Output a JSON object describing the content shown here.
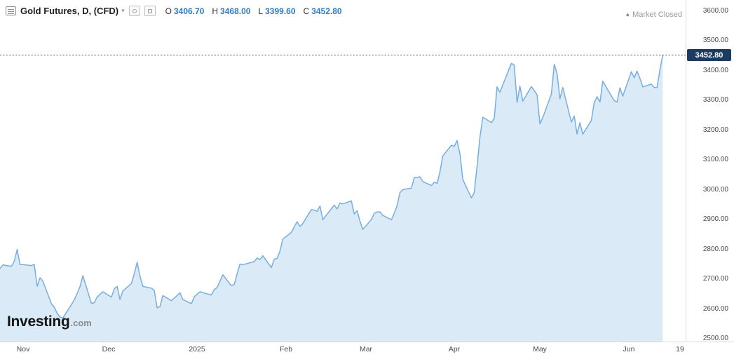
{
  "header": {
    "title": "Gold Futures, D, (CFD)",
    "caret": "▾",
    "ohlc": [
      {
        "label": "O",
        "value": "3406.70"
      },
      {
        "label": "H",
        "value": "3468.00"
      },
      {
        "label": "L",
        "value": "3399.60"
      },
      {
        "label": "C",
        "value": "3452.80"
      }
    ],
    "market_status": {
      "dot": "●",
      "label": "Market Closed"
    }
  },
  "logo": {
    "brand": "Investing",
    "suffix": ".com"
  },
  "colors": {
    "area_fill": "#daeaf7",
    "line": "#78aede",
    "ohlc_value": "#2f7dc3",
    "price_tag_bg": "#1d3a5f",
    "price_tag_text": "#ffffff",
    "axis_text": "#4a4a4a",
    "dotted_line": "#555555"
  },
  "chart_data": {
    "type": "area",
    "title": "Gold Futures, D, (CFD)",
    "xlabel": "",
    "ylabel": "",
    "x_range": [
      "2024-10-24",
      "2025-06-21"
    ],
    "ylim": [
      2500,
      3600
    ],
    "y_ticks": [
      3600,
      3500,
      3400,
      3300,
      3200,
      3100,
      3000,
      2900,
      2800,
      2700,
      2600,
      2500
    ],
    "x_ticks": [
      {
        "label": "Nov",
        "date": "2024-11-01"
      },
      {
        "label": "Dec",
        "date": "2024-12-01"
      },
      {
        "label": "2025",
        "date": "2025-01-01"
      },
      {
        "label": "Feb",
        "date": "2025-02-01"
      },
      {
        "label": "Mar",
        "date": "2025-03-01"
      },
      {
        "label": "Apr",
        "date": "2025-04-01"
      },
      {
        "label": "May",
        "date": "2025-05-01"
      },
      {
        "label": "Jun",
        "date": "2025-06-01"
      },
      {
        "label": "19",
        "date": "2025-06-19"
      }
    ],
    "last_price": 3452.8,
    "last_price_label": "3452.80",
    "series": [
      {
        "name": "Gold Futures Close",
        "points": [
          [
            "2024-10-24",
            2736
          ],
          [
            "2024-10-25",
            2748
          ],
          [
            "2024-10-28",
            2743
          ],
          [
            "2024-10-29",
            2761
          ],
          [
            "2024-10-30",
            2800
          ],
          [
            "2024-10-31",
            2749
          ],
          [
            "2024-11-01",
            2749
          ],
          [
            "2024-11-04",
            2746
          ],
          [
            "2024-11-05",
            2750
          ],
          [
            "2024-11-06",
            2676
          ],
          [
            "2024-11-07",
            2705
          ],
          [
            "2024-11-08",
            2694
          ],
          [
            "2024-11-11",
            2618
          ],
          [
            "2024-11-12",
            2606
          ],
          [
            "2024-11-13",
            2586
          ],
          [
            "2024-11-14",
            2573
          ],
          [
            "2024-11-15",
            2570
          ],
          [
            "2024-11-18",
            2615
          ],
          [
            "2024-11-19",
            2631
          ],
          [
            "2024-11-20",
            2652
          ],
          [
            "2024-11-21",
            2675
          ],
          [
            "2024-11-22",
            2712
          ],
          [
            "2024-11-25",
            2619
          ],
          [
            "2024-11-26",
            2621
          ],
          [
            "2024-11-27",
            2640
          ],
          [
            "2024-11-29",
            2658
          ],
          [
            "2024-12-02",
            2640
          ],
          [
            "2024-12-03",
            2668
          ],
          [
            "2024-12-04",
            2676
          ],
          [
            "2024-12-05",
            2632
          ],
          [
            "2024-12-06",
            2660
          ],
          [
            "2024-12-09",
            2686
          ],
          [
            "2024-12-10",
            2718
          ],
          [
            "2024-12-11",
            2757
          ],
          [
            "2024-12-12",
            2710
          ],
          [
            "2024-12-13",
            2676
          ],
          [
            "2024-12-16",
            2670
          ],
          [
            "2024-12-17",
            2662
          ],
          [
            "2024-12-18",
            2604
          ],
          [
            "2024-12-19",
            2608
          ],
          [
            "2024-12-20",
            2645
          ],
          [
            "2024-12-23",
            2628
          ],
          [
            "2024-12-26",
            2654
          ],
          [
            "2024-12-27",
            2632
          ],
          [
            "2024-12-30",
            2618
          ],
          [
            "2024-12-31",
            2641
          ],
          [
            "2025-01-02",
            2658
          ],
          [
            "2025-01-03",
            2655
          ],
          [
            "2025-01-06",
            2647
          ],
          [
            "2025-01-07",
            2665
          ],
          [
            "2025-01-08",
            2672
          ],
          [
            "2025-01-10",
            2715
          ],
          [
            "2025-01-13",
            2678
          ],
          [
            "2025-01-14",
            2683
          ],
          [
            "2025-01-15",
            2718
          ],
          [
            "2025-01-16",
            2751
          ],
          [
            "2025-01-17",
            2749
          ],
          [
            "2025-01-21",
            2759
          ],
          [
            "2025-01-22",
            2771
          ],
          [
            "2025-01-23",
            2766
          ],
          [
            "2025-01-24",
            2779
          ],
          [
            "2025-01-27",
            2739
          ],
          [
            "2025-01-28",
            2767
          ],
          [
            "2025-01-29",
            2770
          ],
          [
            "2025-01-30",
            2794
          ],
          [
            "2025-01-31",
            2835
          ],
          [
            "2025-02-03",
            2857
          ],
          [
            "2025-02-04",
            2876
          ],
          [
            "2025-02-05",
            2893
          ],
          [
            "2025-02-06",
            2877
          ],
          [
            "2025-02-07",
            2887
          ],
          [
            "2025-02-10",
            2934
          ],
          [
            "2025-02-11",
            2932
          ],
          [
            "2025-02-12",
            2928
          ],
          [
            "2025-02-13",
            2946
          ],
          [
            "2025-02-14",
            2900
          ],
          [
            "2025-02-18",
            2949
          ],
          [
            "2025-02-19",
            2936
          ],
          [
            "2025-02-20",
            2956
          ],
          [
            "2025-02-21",
            2953
          ],
          [
            "2025-02-24",
            2963
          ],
          [
            "2025-02-25",
            2919
          ],
          [
            "2025-02-26",
            2930
          ],
          [
            "2025-02-27",
            2895
          ],
          [
            "2025-02-28",
            2867
          ],
          [
            "2025-03-03",
            2901
          ],
          [
            "2025-03-04",
            2921
          ],
          [
            "2025-03-05",
            2926
          ],
          [
            "2025-03-06",
            2926
          ],
          [
            "2025-03-07",
            2914
          ],
          [
            "2025-03-10",
            2900
          ],
          [
            "2025-03-11",
            2921
          ],
          [
            "2025-03-12",
            2947
          ],
          [
            "2025-03-13",
            2991
          ],
          [
            "2025-03-14",
            3001
          ],
          [
            "2025-03-17",
            3006
          ],
          [
            "2025-03-18",
            3041
          ],
          [
            "2025-03-19",
            3041
          ],
          [
            "2025-03-20",
            3044
          ],
          [
            "2025-03-21",
            3028
          ],
          [
            "2025-03-24",
            3015
          ],
          [
            "2025-03-25",
            3026
          ],
          [
            "2025-03-26",
            3022
          ],
          [
            "2025-03-27",
            3061
          ],
          [
            "2025-03-28",
            3114
          ],
          [
            "2025-03-31",
            3150
          ],
          [
            "2025-04-01",
            3146
          ],
          [
            "2025-04-02",
            3166
          ],
          [
            "2025-04-03",
            3121
          ],
          [
            "2025-04-04",
            3035
          ],
          [
            "2025-04-07",
            2973
          ],
          [
            "2025-04-08",
            2990
          ],
          [
            "2025-04-09",
            3079
          ],
          [
            "2025-04-10",
            3177
          ],
          [
            "2025-04-11",
            3244
          ],
          [
            "2025-04-14",
            3226
          ],
          [
            "2025-04-15",
            3240
          ],
          [
            "2025-04-16",
            3346
          ],
          [
            "2025-04-17",
            3328
          ],
          [
            "2025-04-21",
            3425
          ],
          [
            "2025-04-22",
            3419
          ],
          [
            "2025-04-23",
            3294
          ],
          [
            "2025-04-24",
            3349
          ],
          [
            "2025-04-25",
            3298
          ],
          [
            "2025-04-28",
            3347
          ],
          [
            "2025-04-29",
            3334
          ],
          [
            "2025-04-30",
            3319
          ],
          [
            "2025-05-01",
            3222
          ],
          [
            "2025-05-02",
            3243
          ],
          [
            "2025-05-05",
            3322
          ],
          [
            "2025-05-06",
            3422
          ],
          [
            "2025-05-07",
            3391
          ],
          [
            "2025-05-08",
            3306
          ],
          [
            "2025-05-09",
            3344
          ],
          [
            "2025-05-12",
            3228
          ],
          [
            "2025-05-13",
            3248
          ],
          [
            "2025-05-14",
            3188
          ],
          [
            "2025-05-15",
            3226
          ],
          [
            "2025-05-16",
            3187
          ],
          [
            "2025-05-19",
            3233
          ],
          [
            "2025-05-20",
            3293
          ],
          [
            "2025-05-21",
            3313
          ],
          [
            "2025-05-22",
            3295
          ],
          [
            "2025-05-23",
            3365
          ],
          [
            "2025-05-27",
            3300
          ],
          [
            "2025-05-28",
            3295
          ],
          [
            "2025-05-29",
            3343
          ],
          [
            "2025-05-30",
            3315
          ],
          [
            "2025-06-02",
            3397
          ],
          [
            "2025-06-03",
            3377
          ],
          [
            "2025-06-04",
            3399
          ],
          [
            "2025-06-05",
            3375
          ],
          [
            "2025-06-06",
            3346
          ],
          [
            "2025-06-09",
            3355
          ],
          [
            "2025-06-10",
            3344
          ],
          [
            "2025-06-11",
            3344
          ],
          [
            "2025-06-12",
            3403
          ],
          [
            "2025-06-13",
            3452.8
          ]
        ]
      }
    ]
  }
}
